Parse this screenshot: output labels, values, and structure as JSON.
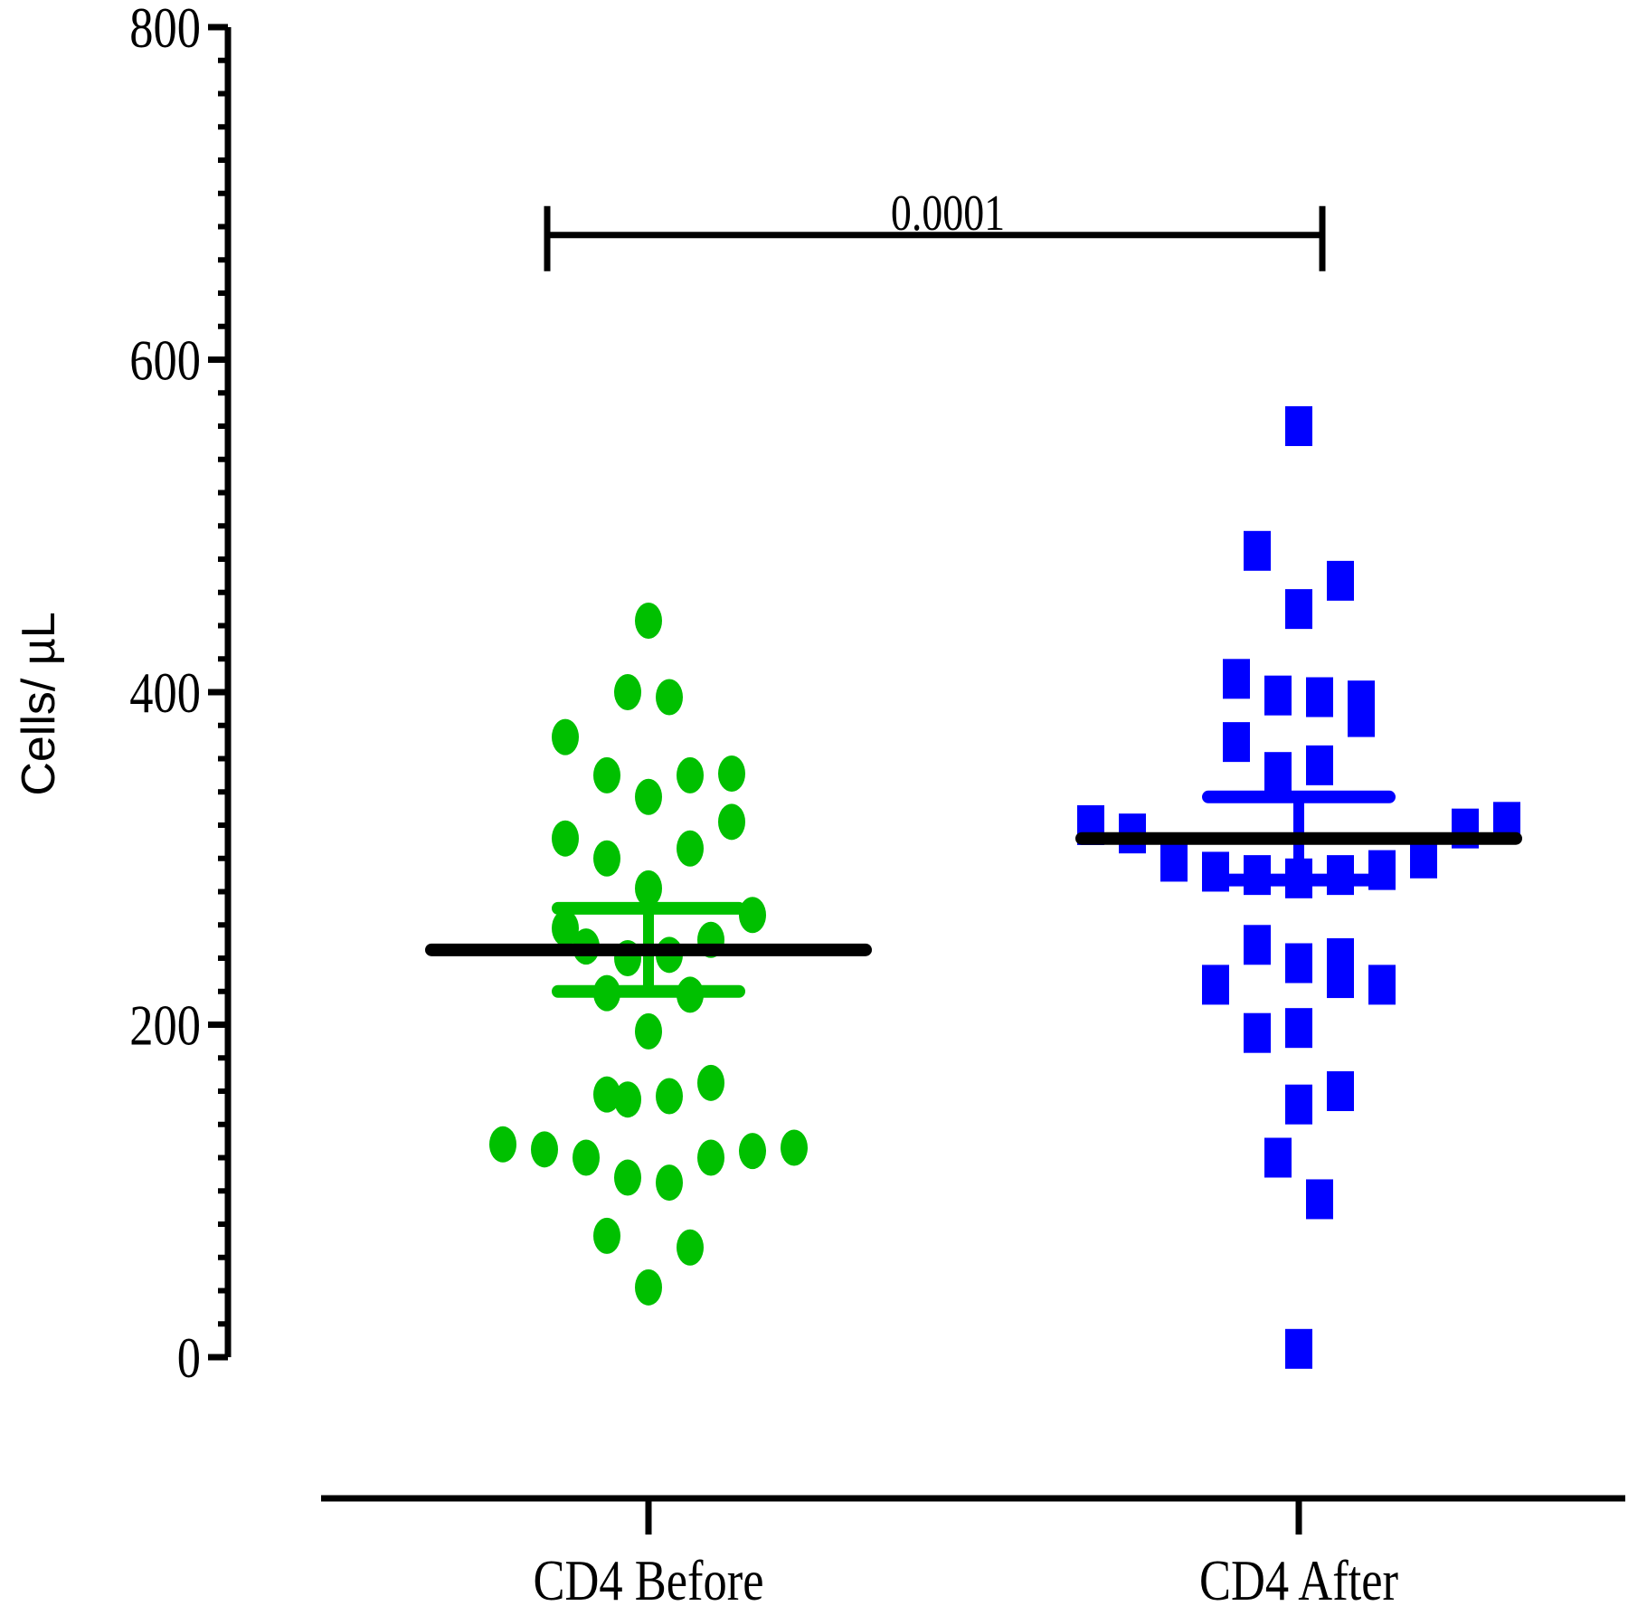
{
  "chart_data": {
    "type": "scatter",
    "title": "",
    "xlabel": "",
    "ylabel": "Cells/ µL",
    "ylim": [
      0,
      800
    ],
    "yticks": [
      0,
      200,
      400,
      600,
      800
    ],
    "y_minor_step": 20,
    "grid": false,
    "legend": "none",
    "categories": [
      "CD4 Before",
      "CD4 After"
    ],
    "series": [
      {
        "name": "CD4 Before",
        "marker": "circle",
        "color": "#00c000",
        "mean": 245,
        "error_low": 220,
        "error_high": 270,
        "points": [
          {
            "offset": 0,
            "value": 443
          },
          {
            "offset": -1,
            "value": 400
          },
          {
            "offset": 1,
            "value": 397
          },
          {
            "offset": -4,
            "value": 373
          },
          {
            "offset": -2,
            "value": 350
          },
          {
            "offset": 0,
            "value": 337
          },
          {
            "offset": 2,
            "value": 350
          },
          {
            "offset": 4,
            "value": 351
          },
          {
            "offset": -4,
            "value": 312
          },
          {
            "offset": -2,
            "value": 300
          },
          {
            "offset": 2,
            "value": 306
          },
          {
            "offset": 4,
            "value": 322
          },
          {
            "offset": 0,
            "value": 282
          },
          {
            "offset": 5,
            "value": 266
          },
          {
            "offset": -4,
            "value": 258
          },
          {
            "offset": -3,
            "value": 247
          },
          {
            "offset": -1,
            "value": 240
          },
          {
            "offset": 1,
            "value": 242
          },
          {
            "offset": 3,
            "value": 251
          },
          {
            "offset": -2,
            "value": 219
          },
          {
            "offset": 2,
            "value": 218
          },
          {
            "offset": 0,
            "value": 196
          },
          {
            "offset": -2,
            "value": 158
          },
          {
            "offset": -1,
            "value": 155
          },
          {
            "offset": 1,
            "value": 157
          },
          {
            "offset": 3,
            "value": 165
          },
          {
            "offset": -7,
            "value": 128
          },
          {
            "offset": -5,
            "value": 125
          },
          {
            "offset": -3,
            "value": 120
          },
          {
            "offset": -1,
            "value": 108
          },
          {
            "offset": 1,
            "value": 105
          },
          {
            "offset": 3,
            "value": 120
          },
          {
            "offset": 5,
            "value": 124
          },
          {
            "offset": 7,
            "value": 126
          },
          {
            "offset": -2,
            "value": 73
          },
          {
            "offset": 2,
            "value": 66
          },
          {
            "offset": 0,
            "value": 42
          }
        ]
      },
      {
        "name": "CD4 After",
        "marker": "square",
        "color": "#0000ff",
        "mean": 312,
        "error_low": 287,
        "error_high": 337,
        "points": [
          {
            "offset": 0,
            "value": 560
          },
          {
            "offset": -2,
            "value": 485
          },
          {
            "offset": 2,
            "value": 467
          },
          {
            "offset": 0,
            "value": 450
          },
          {
            "offset": -3,
            "value": 408
          },
          {
            "offset": -1,
            "value": 398
          },
          {
            "offset": 1,
            "value": 397
          },
          {
            "offset": 3,
            "value": 395
          },
          {
            "offset": 3,
            "value": 385
          },
          {
            "offset": -3,
            "value": 370
          },
          {
            "offset": -1,
            "value": 352
          },
          {
            "offset": 1,
            "value": 356
          },
          {
            "offset": -10,
            "value": 320
          },
          {
            "offset": -8,
            "value": 315
          },
          {
            "offset": 8,
            "value": 318
          },
          {
            "offset": 10,
            "value": 322
          },
          {
            "offset": -6,
            "value": 298
          },
          {
            "offset": -4,
            "value": 292
          },
          {
            "offset": -2,
            "value": 290
          },
          {
            "offset": 0,
            "value": 288
          },
          {
            "offset": 2,
            "value": 290
          },
          {
            "offset": 4,
            "value": 293
          },
          {
            "offset": 6,
            "value": 300
          },
          {
            "offset": -2,
            "value": 248
          },
          {
            "offset": 0,
            "value": 237
          },
          {
            "offset": 2,
            "value": 240
          },
          {
            "offset": 2,
            "value": 228
          },
          {
            "offset": -4,
            "value": 224
          },
          {
            "offset": 4,
            "value": 224
          },
          {
            "offset": -2,
            "value": 195
          },
          {
            "offset": 0,
            "value": 198
          },
          {
            "offset": 2,
            "value": 160
          },
          {
            "offset": 0,
            "value": 152
          },
          {
            "offset": -1,
            "value": 120
          },
          {
            "offset": 1,
            "value": 95
          },
          {
            "offset": 0,
            "value": 5
          }
        ]
      }
    ],
    "comparison": {
      "from": "CD4 Before",
      "to": "CD4 After",
      "value": 675,
      "label": "0.0001"
    }
  }
}
